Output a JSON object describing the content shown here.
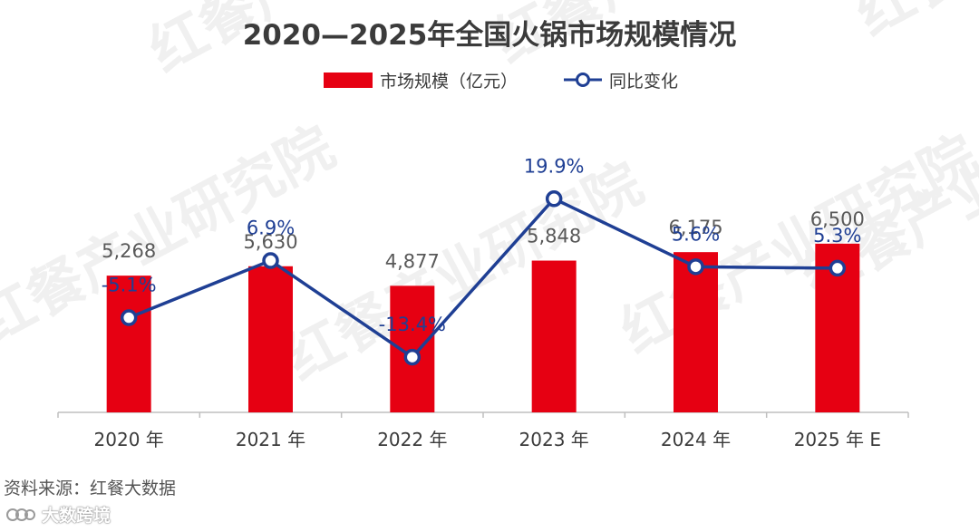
{
  "colors": {
    "bar": "#e60012",
    "line": "#1f3f94",
    "title": "#3b3b3b",
    "value_label": "#595959",
    "axis": "#bfbfbf",
    "watermark": "#f0f0f0"
  },
  "chart_data": {
    "type": "bar",
    "title": "2020—2025年全国火锅市场规模情况",
    "categories": [
      "2020 年",
      "2021 年",
      "2022 年",
      "2023 年",
      "2024 年",
      "2025 年 E"
    ],
    "series": [
      {
        "name": "市场规模（亿元）",
        "type": "bar",
        "axis": "left",
        "values": [
          5268,
          5630,
          4877,
          5848,
          6175,
          6500
        ],
        "labels": [
          "5,268",
          "5,630",
          "4,877",
          "5,848",
          "6,175",
          "6,500"
        ]
      },
      {
        "name": "同比变化",
        "type": "line",
        "axis": "right",
        "values": [
          -5.1,
          6.9,
          -13.4,
          19.9,
          5.6,
          5.3
        ],
        "labels": [
          "-5.1%",
          "6.9%",
          "-13.4%",
          "19.9%",
          "5.6%",
          "5.3%"
        ]
      }
    ],
    "ylim_left": [
      0,
      11000
    ],
    "ylim_right": [
      -25,
      35
    ],
    "legend_position": "top-center",
    "grid": false
  },
  "footer": {
    "source": "资料来源：红餐大数据",
    "brand": "大数跨境"
  },
  "watermark": {
    "text": "红餐产业研究院"
  }
}
